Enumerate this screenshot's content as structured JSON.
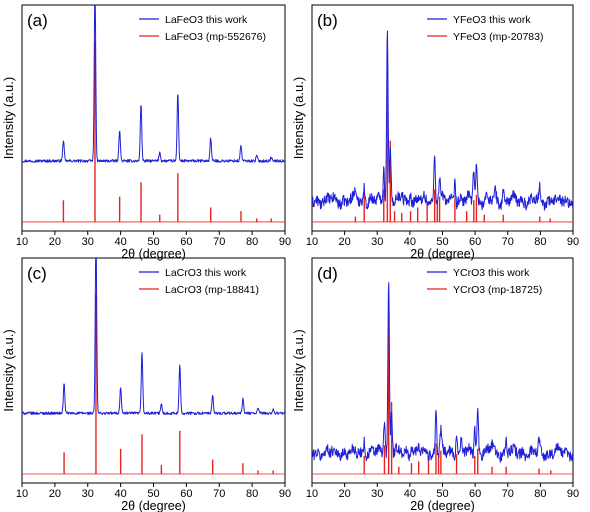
{
  "figure": {
    "ylabel": "Intensity (a.u.)",
    "xlabel": "2θ (degree)"
  },
  "chart_data": [
    {
      "type": "line",
      "panel_label": "(a)",
      "xlabel": "2θ (degree)",
      "ylabel": "Intensity (a.u.)",
      "xlim": [
        10,
        90
      ],
      "xticks": [
        "10",
        "20",
        "30",
        "40",
        "50",
        "60",
        "70",
        "80",
        "90"
      ],
      "noise": "low",
      "legend": "top-right",
      "series": [
        {
          "name": "LaFeO3 this work",
          "color": "#1f1fd6",
          "peaks": [
            [
              22.6,
              0.12
            ],
            [
              32.2,
              1.0
            ],
            [
              39.7,
              0.18
            ],
            [
              46.2,
              0.33
            ],
            [
              51.9,
              0.05
            ],
            [
              57.4,
              0.39
            ],
            [
              67.4,
              0.13
            ],
            [
              76.6,
              0.09
            ],
            [
              81.4,
              0.03
            ],
            [
              85.8,
              0.02
            ]
          ]
        },
        {
          "name": "LaFeO3 (mp-552676)",
          "color": "#e8231f",
          "peaks": [
            [
              22.6,
              0.12
            ],
            [
              32.2,
              1.0
            ],
            [
              39.7,
              0.14
            ],
            [
              46.2,
              0.22
            ],
            [
              51.9,
              0.04
            ],
            [
              57.4,
              0.27
            ],
            [
              67.4,
              0.08
            ],
            [
              76.6,
              0.06
            ],
            [
              81.4,
              0.02
            ],
            [
              85.8,
              0.02
            ]
          ]
        }
      ]
    },
    {
      "type": "line",
      "panel_label": "(b)",
      "xlabel": "2θ (degree)",
      "ylabel": "Intensity (a.u.)",
      "xlim": [
        10,
        90
      ],
      "xticks": [
        "10",
        "20",
        "30",
        "40",
        "50",
        "60",
        "70",
        "80",
        "90"
      ],
      "noise": "high",
      "legend": "top-right",
      "series": [
        {
          "name": "YFeO3 this work",
          "color": "#1f1fd6",
          "peaks": [
            [
              23.3,
              0.06
            ],
            [
              26.0,
              0.09
            ],
            [
              32.0,
              0.2
            ],
            [
              33.1,
              1.0
            ],
            [
              34.0,
              0.3
            ],
            [
              37.5,
              0.06
            ],
            [
              40.2,
              0.05
            ],
            [
              47.6,
              0.28
            ],
            [
              49.1,
              0.14
            ],
            [
              53.8,
              0.12
            ],
            [
              59.6,
              0.2
            ],
            [
              60.4,
              0.22
            ],
            [
              66.2,
              0.05
            ],
            [
              68.6,
              0.06
            ],
            [
              79.8,
              0.06
            ]
          ]
        },
        {
          "name": "YFeO3 (mp-20783)",
          "color": "#e8231f",
          "peaks": [
            [
              23.3,
              0.03
            ],
            [
              26.0,
              0.17
            ],
            [
              32.0,
              0.18
            ],
            [
              33.1,
              0.95
            ],
            [
              34.0,
              0.45
            ],
            [
              35.3,
              0.06
            ],
            [
              37.5,
              0.05
            ],
            [
              40.2,
              0.06
            ],
            [
              42.4,
              0.08
            ],
            [
              45.3,
              0.1
            ],
            [
              47.6,
              0.18
            ],
            [
              48.4,
              0.11
            ],
            [
              49.1,
              0.14
            ],
            [
              53.8,
              0.13
            ],
            [
              57.4,
              0.06
            ],
            [
              59.6,
              0.12
            ],
            [
              60.4,
              0.15
            ],
            [
              62.8,
              0.04
            ],
            [
              68.6,
              0.04
            ],
            [
              79.8,
              0.03
            ],
            [
              83.0,
              0.02
            ]
          ]
        }
      ]
    },
    {
      "type": "line",
      "panel_label": "(c)",
      "xlabel": "2θ (degree)",
      "ylabel": "Intensity (a.u.)",
      "xlim": [
        10,
        90
      ],
      "xticks": [
        "10",
        "20",
        "30",
        "40",
        "50",
        "60",
        "70",
        "80",
        "90"
      ],
      "noise": "low",
      "legend": "top-right",
      "series": [
        {
          "name": "LaCrO3 this work",
          "color": "#1f1fd6",
          "peaks": [
            [
              22.8,
              0.17
            ],
            [
              32.5,
              1.0
            ],
            [
              40.0,
              0.15
            ],
            [
              46.5,
              0.35
            ],
            [
              52.4,
              0.05
            ],
            [
              58.0,
              0.28
            ],
            [
              68.0,
              0.1
            ],
            [
              77.2,
              0.08
            ],
            [
              81.8,
              0.03
            ],
            [
              86.4,
              0.02
            ]
          ]
        },
        {
          "name": "LaCrO3 (mp-18841)",
          "color": "#e8231f",
          "peaks": [
            [
              22.8,
              0.12
            ],
            [
              32.5,
              1.0
            ],
            [
              40.0,
              0.14
            ],
            [
              46.5,
              0.22
            ],
            [
              52.4,
              0.05
            ],
            [
              58.0,
              0.24
            ],
            [
              68.0,
              0.08
            ],
            [
              77.2,
              0.06
            ],
            [
              81.8,
              0.02
            ],
            [
              86.4,
              0.02
            ]
          ]
        }
      ]
    },
    {
      "type": "line",
      "panel_label": "(d)",
      "xlabel": "2θ (degree)",
      "ylabel": "Intensity (a.u.)",
      "xlim": [
        10,
        90
      ],
      "xticks": [
        "10",
        "20",
        "30",
        "40",
        "50",
        "60",
        "70",
        "80",
        "90"
      ],
      "noise": "high",
      "legend": "top-right",
      "series": [
        {
          "name": "YCrO3 this work",
          "color": "#1f1fd6",
          "peaks": [
            [
              26.0,
              0.08
            ],
            [
              32.2,
              0.2
            ],
            [
              33.5,
              1.0
            ],
            [
              34.4,
              0.25
            ],
            [
              40.5,
              0.06
            ],
            [
              42.7,
              0.05
            ],
            [
              48.0,
              0.26
            ],
            [
              49.5,
              0.12
            ],
            [
              54.3,
              0.13
            ],
            [
              55.7,
              0.08
            ],
            [
              59.9,
              0.14
            ],
            [
              60.8,
              0.24
            ],
            [
              65.2,
              0.06
            ],
            [
              69.5,
              0.07
            ],
            [
              79.6,
              0.06
            ]
          ]
        },
        {
          "name": "YCrO3 (mp-18725)",
          "color": "#e8231f",
          "peaks": [
            [
              26.0,
              0.1
            ],
            [
              32.2,
              0.16
            ],
            [
              33.5,
              0.95
            ],
            [
              34.4,
              0.4
            ],
            [
              36.6,
              0.04
            ],
            [
              40.5,
              0.06
            ],
            [
              42.7,
              0.07
            ],
            [
              45.7,
              0.08
            ],
            [
              48.0,
              0.17
            ],
            [
              48.8,
              0.1
            ],
            [
              49.5,
              0.13
            ],
            [
              54.3,
              0.11
            ],
            [
              59.9,
              0.1
            ],
            [
              60.8,
              0.14
            ],
            [
              65.2,
              0.04
            ],
            [
              69.5,
              0.04
            ],
            [
              79.6,
              0.03
            ],
            [
              83.2,
              0.02
            ]
          ]
        }
      ]
    }
  ]
}
